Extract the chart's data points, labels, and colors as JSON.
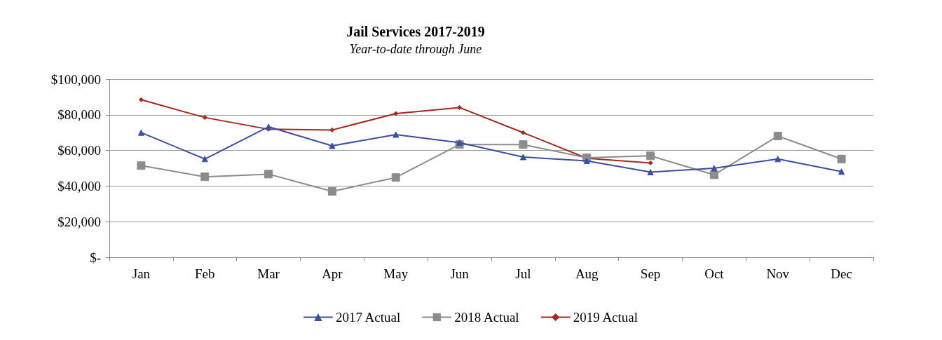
{
  "chart_data": {
    "type": "line",
    "title": "Jail Services 2017-2019",
    "subtitle": "Year-to-date through June",
    "categories": [
      "Jan",
      "Feb",
      "Mar",
      "Apr",
      "May",
      "Jun",
      "Jul",
      "Aug",
      "Sep",
      "Oct",
      "Nov",
      "Dec"
    ],
    "series": [
      {
        "name": "2017 Actual",
        "color": "#3b4fa0",
        "marker": "triangle",
        "values": [
          70000,
          55200,
          73300,
          62600,
          68900,
          64400,
          56300,
          54100,
          47800,
          50000,
          55200,
          48100
        ]
      },
      {
        "name": "2018 Actual",
        "color": "#8c8c8c",
        "marker": "square",
        "values": [
          51500,
          45200,
          46700,
          37000,
          44800,
          63300,
          63300,
          55900,
          57000,
          46300,
          68100,
          55200
        ]
      },
      {
        "name": "2019 Actual",
        "color": "#a3281e",
        "marker": "diamond",
        "values": [
          88500,
          78500,
          71900,
          71500,
          80700,
          84100,
          70000,
          55600,
          53000,
          null,
          null,
          null
        ]
      }
    ],
    "ylim": [
      0,
      100000
    ],
    "yticks": [
      {
        "value": 0,
        "label": "$-"
      },
      {
        "value": 20000,
        "label": "$20,000"
      },
      {
        "value": 40000,
        "label": "$40,000"
      },
      {
        "value": 60000,
        "label": "$60,000"
      },
      {
        "value": 80000,
        "label": "$80,000"
      },
      {
        "value": 100000,
        "label": "$100,000"
      }
    ],
    "grid": "y",
    "legend": "bottom",
    "line_style": "solid"
  }
}
